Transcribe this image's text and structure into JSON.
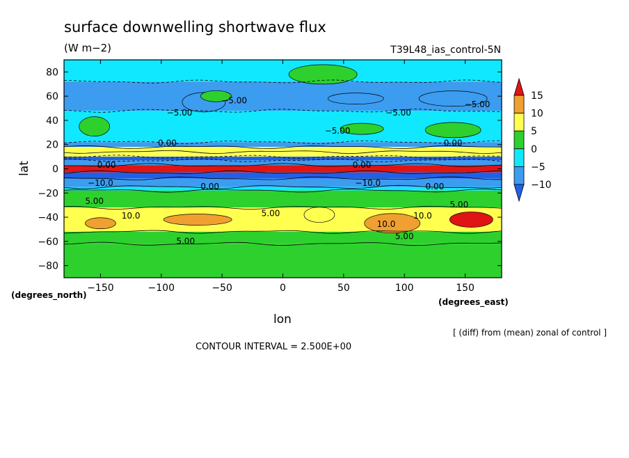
{
  "chart_data": {
    "type": "heatmap",
    "title": "surface downwelling shortwave flux",
    "units": "(W m−2)",
    "dataset_label": "T39L48_ias_control-5N",
    "xlabel": "lon",
    "ylabel": "lat",
    "x_units_note": "(degrees_east)",
    "y_units_note": "(degrees_north)",
    "xlim": [
      -180,
      180
    ],
    "ylim": [
      -90,
      90
    ],
    "x_ticks": [
      -150,
      -100,
      -50,
      0,
      50,
      100,
      150
    ],
    "x_tick_labels": [
      "−150",
      "−100",
      "−50",
      "0",
      "50",
      "100",
      "150"
    ],
    "y_ticks": [
      80,
      60,
      40,
      20,
      0,
      -20,
      -40,
      -60,
      -80
    ],
    "y_tick_labels": [
      "80",
      "60",
      "40",
      "20",
      "0",
      "−20",
      "−40",
      "−60",
      "−80"
    ],
    "footnote": "[ (diff) from (mean) zonal of control ]",
    "contour_interval_text": "CONTOUR INTERVAL = 2.500E+00",
    "colorbar": {
      "tick_labels": [
        "15",
        "10",
        "5",
        "0",
        "−5",
        "−10"
      ],
      "bin_colors": [
        "#e01414",
        "#f0a030",
        "#ffff50",
        "#2ed02e",
        "#10e8ff",
        "#3c9cf0",
        "#2060e8"
      ]
    },
    "lat_bands": [
      {
        "from": 90,
        "to": 72,
        "value": -3
      },
      {
        "from": 72,
        "to": 48,
        "value": -6
      },
      {
        "from": 48,
        "to": 22,
        "value": -3
      },
      {
        "from": 22,
        "to": 18,
        "value": -7
      },
      {
        "from": 18,
        "to": 14,
        "value": 6
      },
      {
        "from": 14,
        "to": 10,
        "value": 9
      },
      {
        "from": 10,
        "to": 7,
        "value": -12
      },
      {
        "from": 7,
        "to": 3,
        "value": -8
      },
      {
        "from": 3,
        "to": -3,
        "value": 16
      },
      {
        "from": -3,
        "to": -8,
        "value": -12
      },
      {
        "from": -8,
        "to": -15,
        "value": -8
      },
      {
        "from": -15,
        "to": -18,
        "value": -3
      },
      {
        "from": -18,
        "to": -32,
        "value": 2
      },
      {
        "from": -32,
        "to": -52,
        "value": 6
      },
      {
        "from": -52,
        "to": -62,
        "value": 4
      },
      {
        "from": -62,
        "to": -90,
        "value": 2
      }
    ],
    "features": [
      {
        "lon": -150,
        "lat": -45,
        "value": 14
      },
      {
        "lon": 155,
        "lat": -42,
        "value": 16
      },
      {
        "lon": 90,
        "lat": -45,
        "value": 12
      },
      {
        "lon": -70,
        "lat": -42,
        "value": 11
      },
      {
        "lon": 30,
        "lat": -38,
        "value": 8
      },
      {
        "lon": -65,
        "lat": 55,
        "value": -7
      },
      {
        "lon": 60,
        "lat": 58,
        "value": -8
      },
      {
        "lon": 140,
        "lat": 58,
        "value": -7
      },
      {
        "lon": -155,
        "lat": 35,
        "value": 2
      },
      {
        "lon": 65,
        "lat": 33,
        "value": 2
      },
      {
        "lon": 140,
        "lat": 32,
        "value": 2
      },
      {
        "lon": 33,
        "lat": 78,
        "value": 3
      },
      {
        "lon": -55,
        "lat": 60,
        "value": 1
      }
    ],
    "contour_labels": [
      "5.00",
      "−5.00",
      "0.00",
      "10.0",
      "−10.0"
    ]
  }
}
